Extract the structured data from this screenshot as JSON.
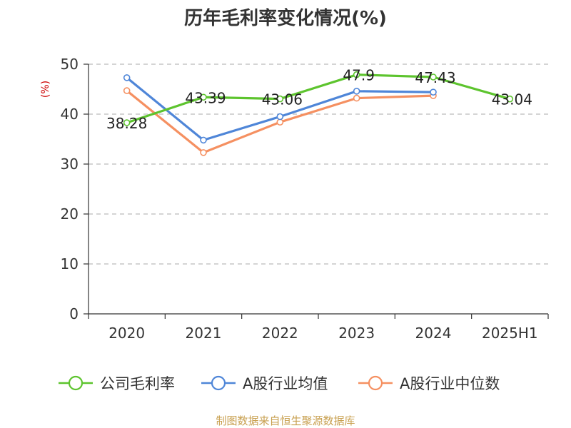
{
  "chart_data": {
    "type": "line",
    "title": "历年毛利率变化情况(%)",
    "ylabel": "(%)",
    "xlabel": "",
    "ylim": [
      0,
      50
    ],
    "yticks": [
      0,
      10,
      20,
      30,
      40,
      50
    ],
    "grid": true,
    "legend_position": "bottom",
    "categories": [
      "2020",
      "2021",
      "2022",
      "2023",
      "2024",
      "2025H1"
    ],
    "series": [
      {
        "name": "公司毛利率",
        "color": "#5dc42e",
        "values": [
          38.28,
          43.39,
          43.06,
          47.9,
          47.43,
          43.04
        ],
        "labels": [
          "38.28",
          "43.39",
          "43.06",
          "47.9",
          "47.43",
          "43.04"
        ]
      },
      {
        "name": "A股行业均值",
        "color": "#4f86d8",
        "values": [
          47.3,
          34.8,
          39.5,
          44.6,
          44.4,
          null
        ]
      },
      {
        "name": "A股行业中位数",
        "color": "#f59061",
        "values": [
          44.7,
          32.3,
          38.4,
          43.2,
          43.7,
          null
        ]
      }
    ],
    "source": "制图数据来自恒生聚源数据库"
  }
}
